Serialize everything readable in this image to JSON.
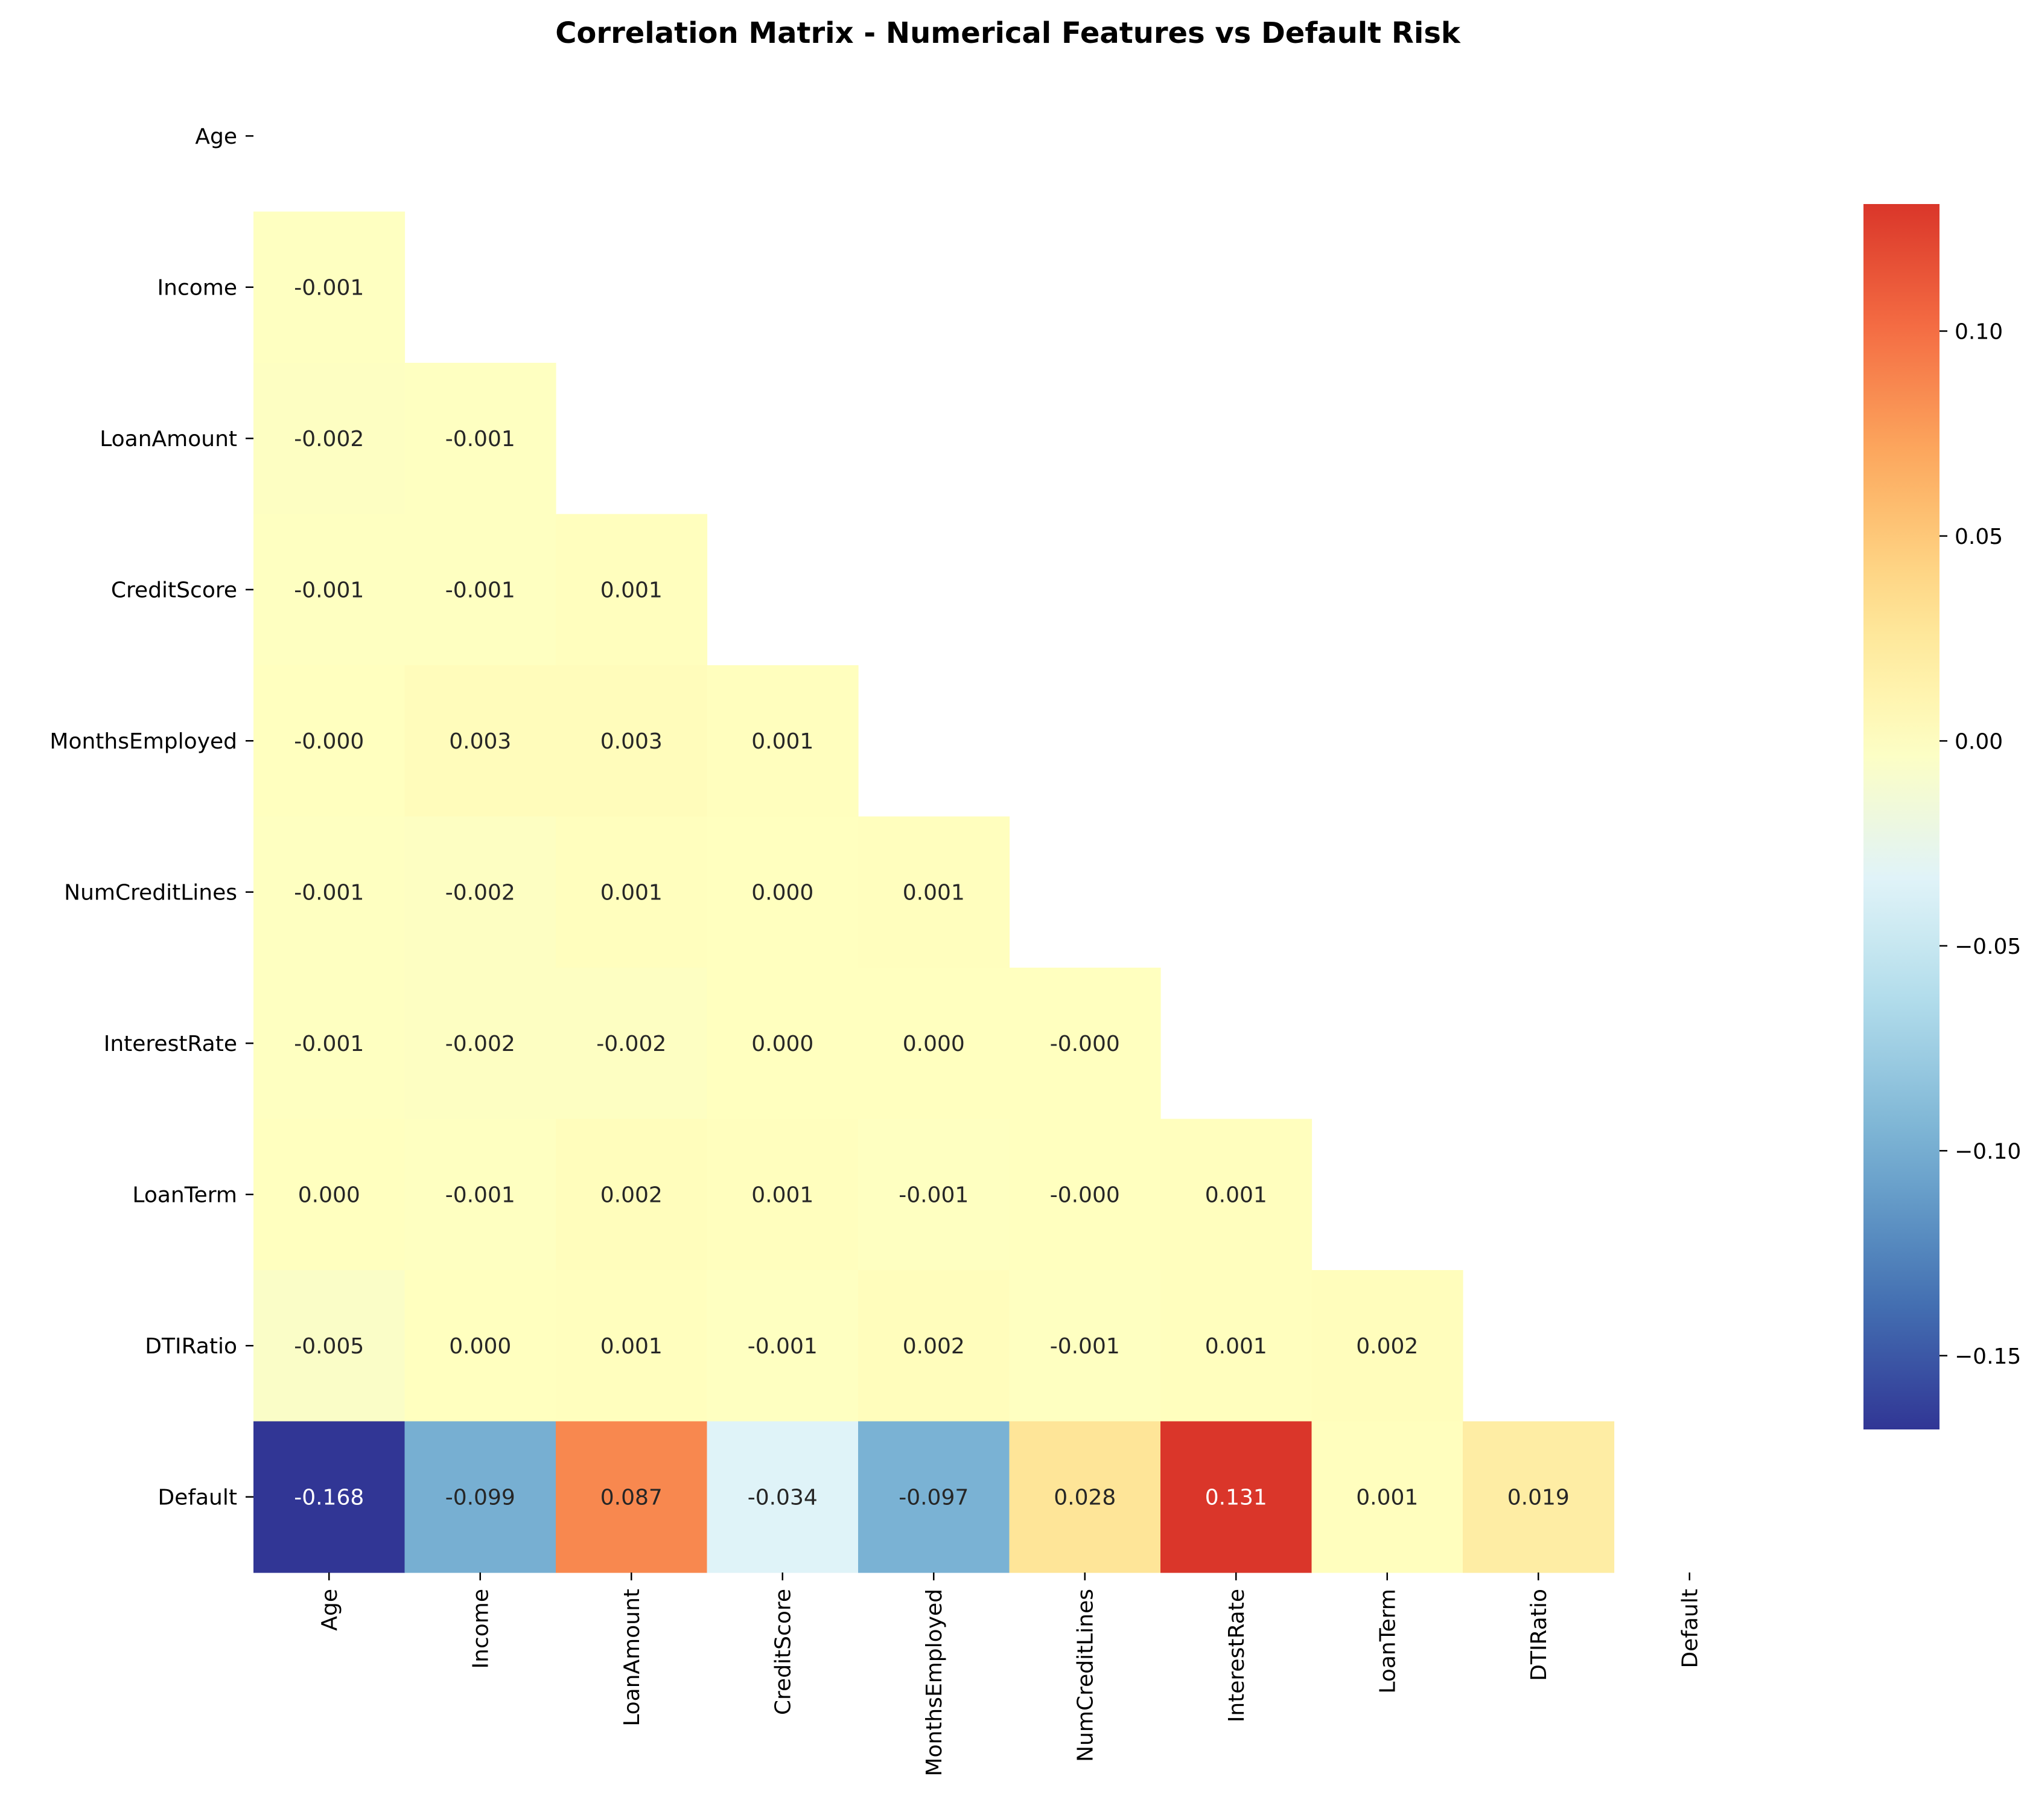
{
  "chart_data": {
    "type": "heatmap",
    "title": "Correlation Matrix - Numerical Features vs Default Risk",
    "variables": [
      "Age",
      "Income",
      "LoanAmount",
      "CreditScore",
      "MonthsEmployed",
      "NumCreditLines",
      "InterestRate",
      "LoanTerm",
      "DTIRatio",
      "Default"
    ],
    "mask": "upper-triangle-including-diagonal",
    "value_format": "3 decimals",
    "lower_triangle": [
      [],
      [
        -0.001
      ],
      [
        -0.002,
        -0.001
      ],
      [
        -0.001,
        -0.001,
        0.001
      ],
      [
        -0.0,
        0.003,
        0.003,
        0.001
      ],
      [
        -0.001,
        -0.002,
        0.001,
        0.0,
        0.001
      ],
      [
        -0.001,
        -0.002,
        -0.002,
        0.0,
        0.0,
        -0.0
      ],
      [
        0.0,
        -0.001,
        0.002,
        0.001,
        -0.001,
        -0.0,
        0.001
      ],
      [
        -0.005,
        0.0,
        0.001,
        -0.001,
        0.002,
        -0.001,
        0.001,
        0.002
      ],
      [
        -0.168,
        -0.099,
        0.087,
        -0.034,
        -0.097,
        0.028,
        0.131,
        0.001,
        0.019
      ]
    ],
    "labels": [
      [],
      [
        "-0.001"
      ],
      [
        "-0.002",
        "-0.001"
      ],
      [
        "-0.001",
        "-0.001",
        "0.001"
      ],
      [
        "-0.000",
        "0.003",
        "0.003",
        "0.001"
      ],
      [
        "-0.001",
        "-0.002",
        "0.001",
        "0.000",
        "0.001"
      ],
      [
        "-0.001",
        "-0.002",
        "-0.002",
        "0.000",
        "0.000",
        "-0.000"
      ],
      [
        "0.000",
        "-0.001",
        "0.002",
        "0.001",
        "-0.001",
        "-0.000",
        "0.001"
      ],
      [
        "-0.005",
        "0.000",
        "0.001",
        "-0.001",
        "0.002",
        "-0.001",
        "0.001",
        "0.002"
      ],
      [
        "-0.168",
        "-0.099",
        "0.087",
        "-0.034",
        "-0.097",
        "0.028",
        "0.131",
        "0.001",
        "0.019"
      ]
    ],
    "colormap": "RdYlBu_r",
    "colormap_center": 0.0,
    "vmin": -0.168,
    "vmax": 0.131,
    "colorbar": {
      "ticks": [
        0.1,
        0.05,
        0.0,
        -0.05,
        -0.1,
        -0.15
      ],
      "tick_labels": [
        "0.10",
        "0.05",
        "0.00",
        "−0.05",
        "−0.10",
        "−0.15"
      ]
    },
    "grid": false,
    "colors": {
      "cold": "#313695",
      "neutral": "#ffffbf",
      "hot": "#d73027"
    }
  }
}
